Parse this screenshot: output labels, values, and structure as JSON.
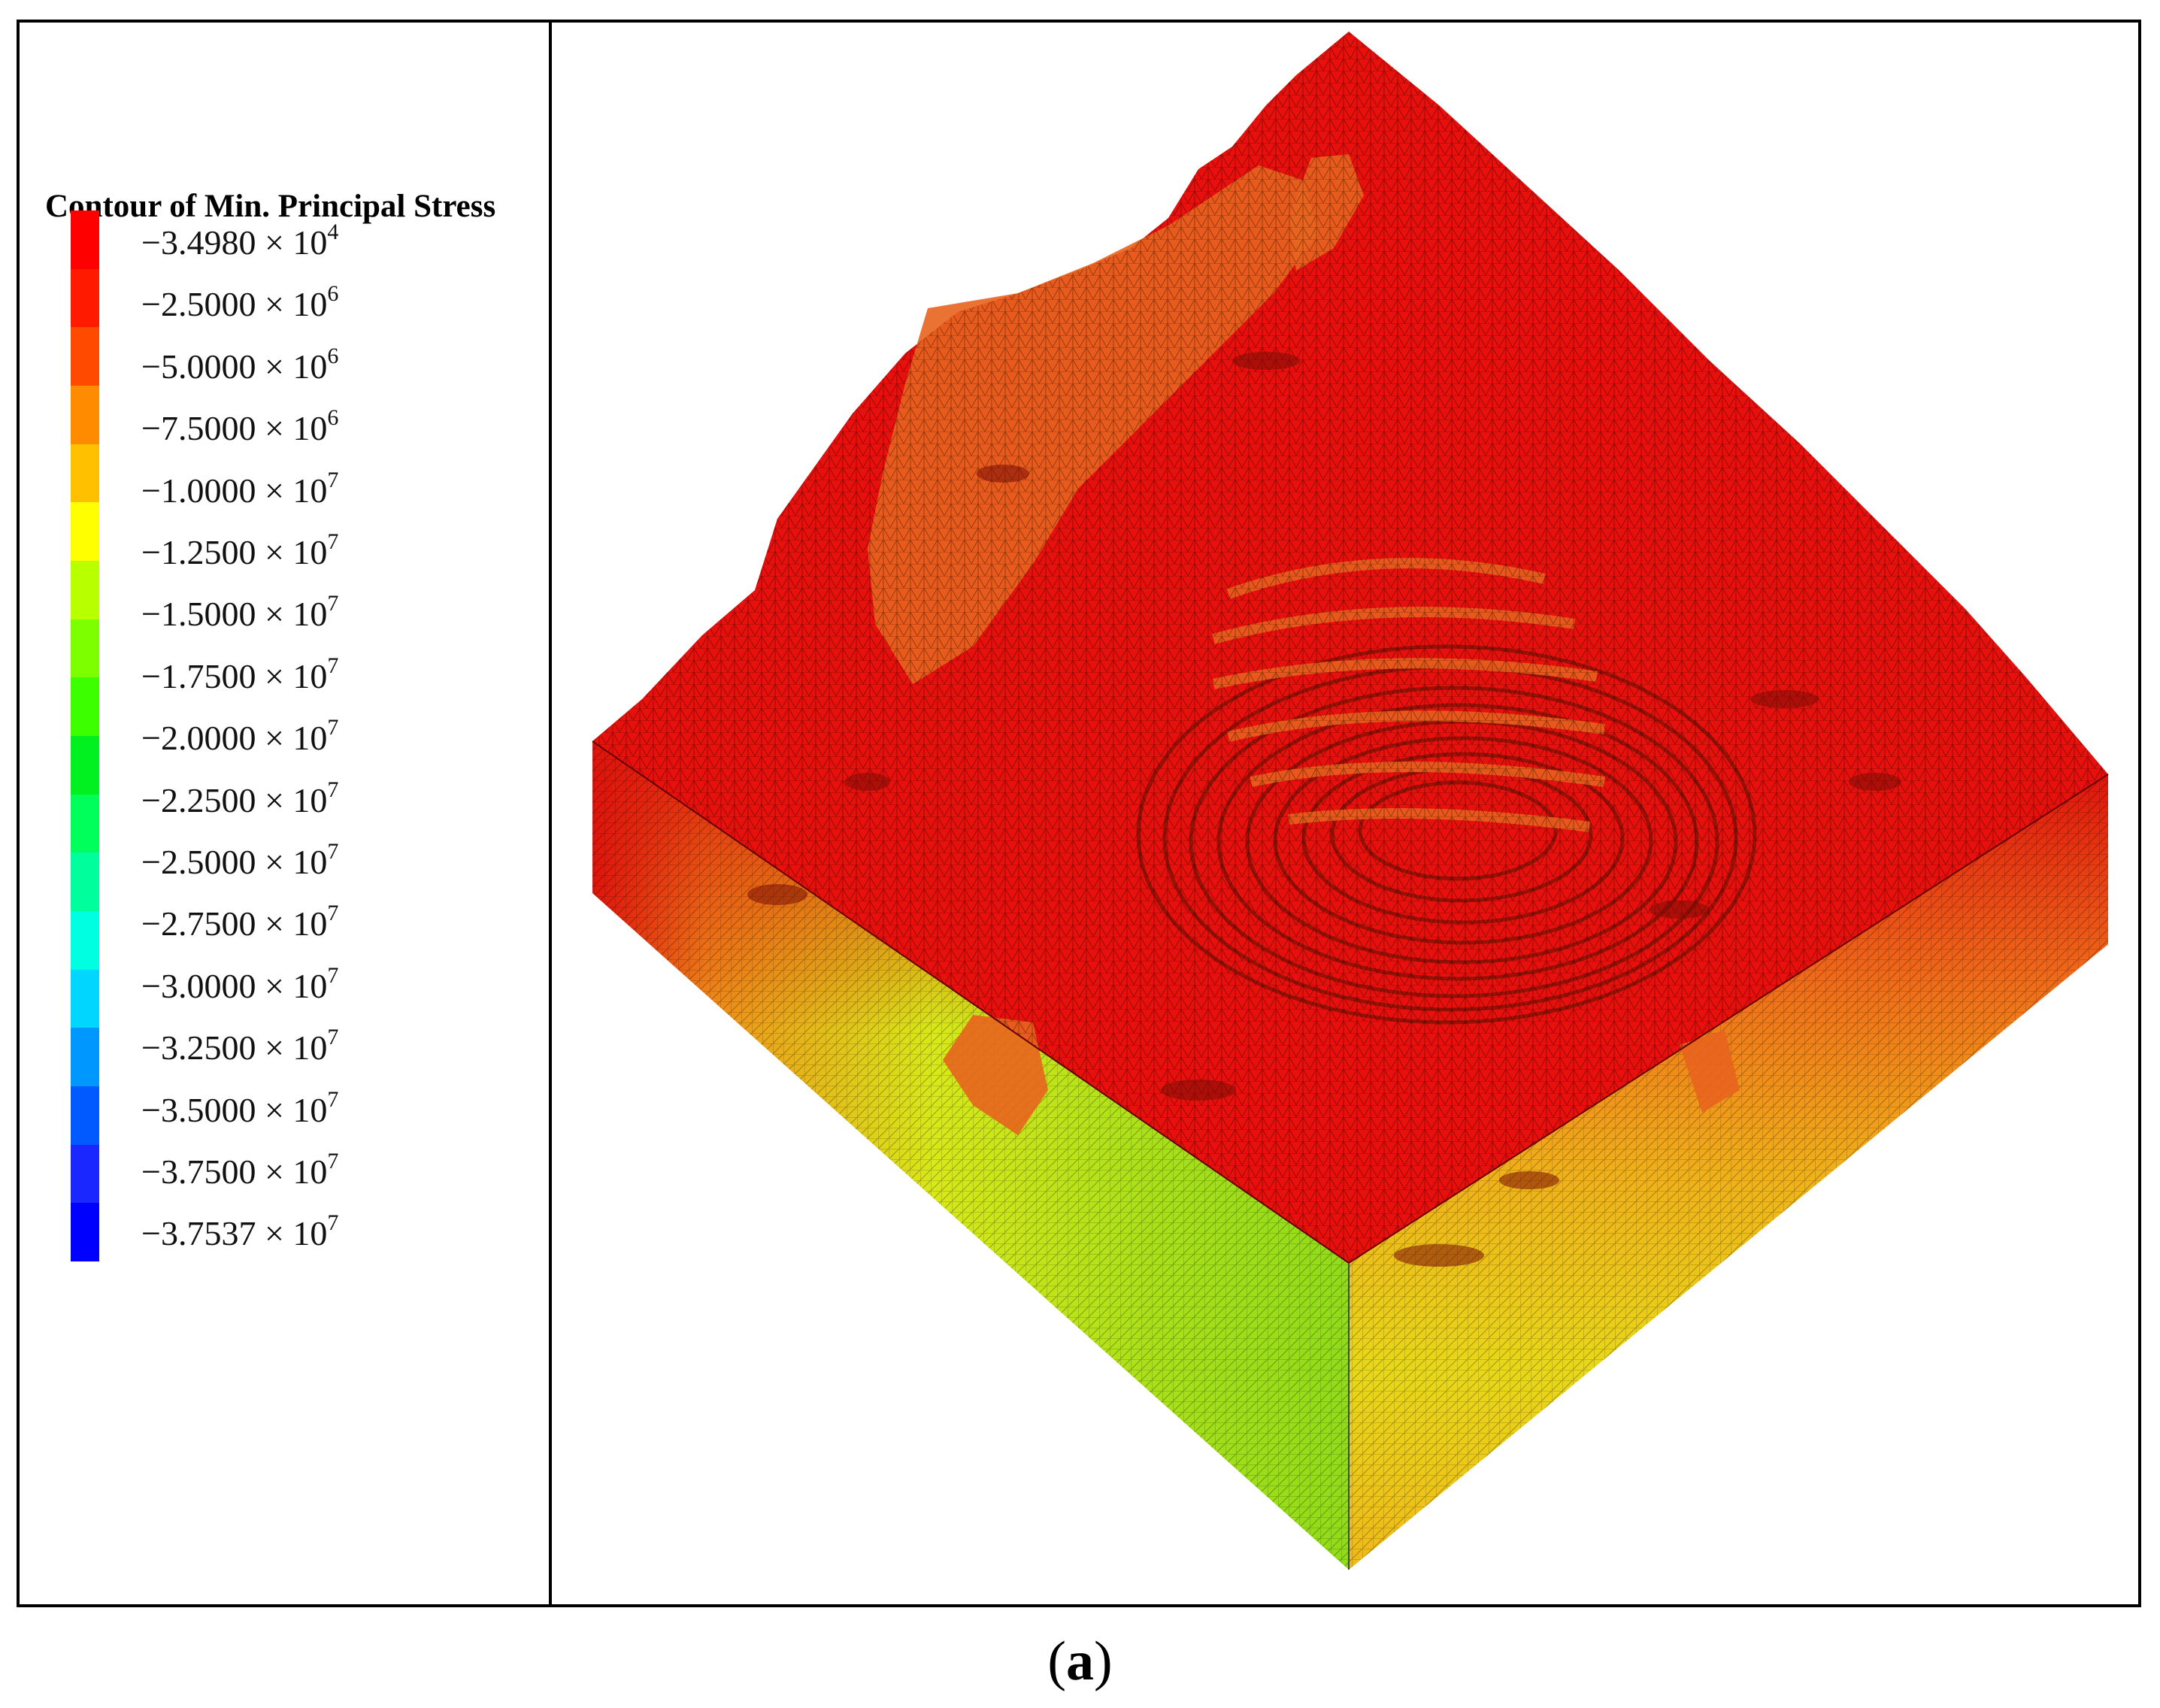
{
  "legend": {
    "title": "Contour of Min. Principal Stress",
    "levels": [
      {
        "mantissa": "−3.4980",
        "exp": "4"
      },
      {
        "mantissa": "−2.5000",
        "exp": "6"
      },
      {
        "mantissa": "−5.0000",
        "exp": "6"
      },
      {
        "mantissa": "−7.5000",
        "exp": "6"
      },
      {
        "mantissa": "−1.0000",
        "exp": "7"
      },
      {
        "mantissa": "−1.2500",
        "exp": "7"
      },
      {
        "mantissa": "−1.5000",
        "exp": "7"
      },
      {
        "mantissa": "−1.7500",
        "exp": "7"
      },
      {
        "mantissa": "−2.0000",
        "exp": "7"
      },
      {
        "mantissa": "−2.2500",
        "exp": "7"
      },
      {
        "mantissa": "−2.5000",
        "exp": "7"
      },
      {
        "mantissa": "−2.7500",
        "exp": "7"
      },
      {
        "mantissa": "−3.0000",
        "exp": "7"
      },
      {
        "mantissa": "−3.2500",
        "exp": "7"
      },
      {
        "mantissa": "−3.5000",
        "exp": "7"
      },
      {
        "mantissa": "−3.7500",
        "exp": "7"
      },
      {
        "mantissa": "−3.7537",
        "exp": "7"
      }
    ],
    "colors": [
      "#ff0000",
      "#ff1a00",
      "#ff4a00",
      "#ff8c00",
      "#ffc000",
      "#ffff00",
      "#b8ff00",
      "#7dff00",
      "#3cff00",
      "#00f020",
      "#00ff5a",
      "#00ff9c",
      "#00ffe0",
      "#00d6ff",
      "#0098ff",
      "#005aff",
      "#1a28ff",
      "#0000ff"
    ]
  },
  "model": {
    "top_color": "#e8100c",
    "patch_color": "#e8641e",
    "left_side_colors": [
      "#e0140c",
      "#f09018",
      "#d8e818",
      "#a8e018",
      "#90dc18"
    ],
    "right_side_colors": [
      "#e0140c",
      "#f06818",
      "#f0b018",
      "#e8d818",
      "#f0b818"
    ]
  },
  "caption": "a"
}
